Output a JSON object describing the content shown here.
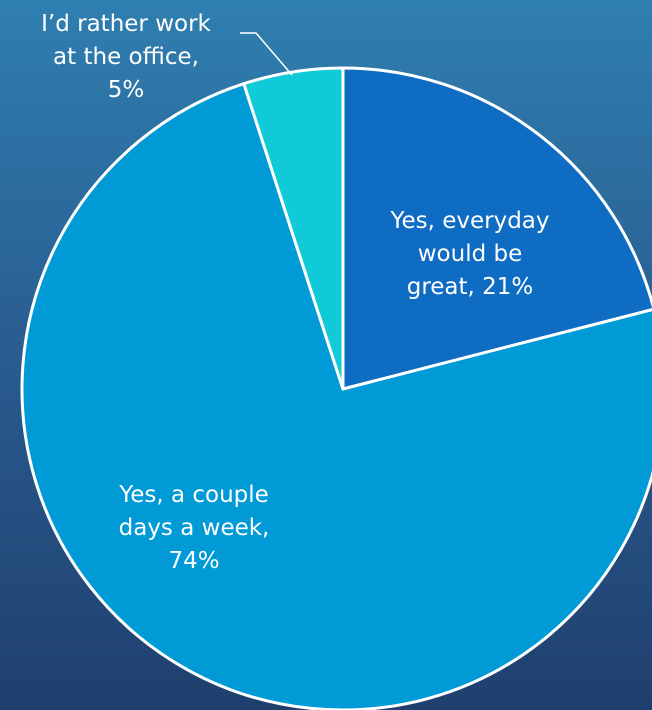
{
  "chart_data": {
    "type": "pie",
    "title": "",
    "slices": [
      {
        "label": "Yes, everyday would be great",
        "value": 21,
        "color": "#0f6cc3",
        "text_lines": [
          "Yes, everyday",
          "would be",
          "great, 21%"
        ]
      },
      {
        "label": "Yes, a couple days a week",
        "value": 74,
        "color": "#009bd6",
        "text_lines": [
          "Yes, a couple",
          "days a week,",
          "74%"
        ]
      },
      {
        "label": "I’d rather work at the office",
        "value": 5,
        "color": "#10cbd7",
        "text_lines": [
          "I’d rather work",
          "at the office,",
          "5%"
        ]
      }
    ],
    "legend": "none",
    "slice_border_color": "#ffffff"
  }
}
